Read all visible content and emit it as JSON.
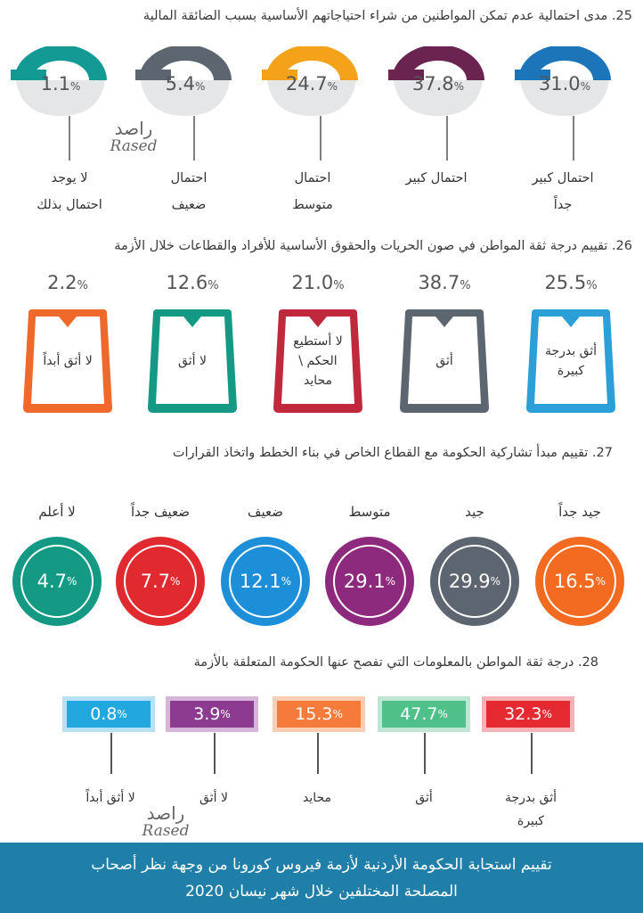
{
  "q25": {
    "title": "25. مدى احتمالية عدم تمكن المواطنين من شراء احتياجاتهم الأساسية بسبب الضائقة المالية",
    "items": [
      {
        "value": "31.0",
        "unit": "%",
        "label_line1": "احتمال كبير",
        "label_line2": "جداً",
        "color": "#1b75b8"
      },
      {
        "value": "37.8",
        "unit": "%",
        "label_line1": "احتمال كبير",
        "label_line2": "",
        "color": "#6b2450"
      },
      {
        "value": "24.7",
        "unit": "%",
        "label_line1": "احتمال",
        "label_line2": "متوسط",
        "color": "#f5a21b"
      },
      {
        "value": "5.4",
        "unit": "%",
        "label_line1": "احتمال",
        "label_line2": "ضعيف",
        "color": "#5d6670"
      },
      {
        "value": "1.1",
        "unit": "%",
        "label_line1": "لا يوجد",
        "label_line2": "احتمال بذلك",
        "color": "#149a95"
      }
    ]
  },
  "q26": {
    "title": "26. تقييم درجة ثقة المواطن في صون الحريات والحقوق الأساسية للأفراد والقطاعات خلال الأزمة",
    "items": [
      {
        "value": "25.5",
        "unit": "%",
        "label": "أثق بدرجة كبيرة",
        "color": "#2a9fd8"
      },
      {
        "value": "38.7",
        "unit": "%",
        "label": "أثق",
        "color": "#5d6670"
      },
      {
        "value": "21.0",
        "unit": "%",
        "label": "لا أستطيع الحكم \\ محايد",
        "color": "#c0283c"
      },
      {
        "value": "12.6",
        "unit": "%",
        "label": "لا أثق",
        "color": "#149a84"
      },
      {
        "value": "2.2",
        "unit": "%",
        "label": "لا أثق أبداً",
        "color": "#ef6a2a"
      }
    ]
  },
  "q27": {
    "title": "27. تقييم مبدأ تشاركية الحكومة مع القطاع الخاص في بناء الخطط واتخاذ القرارات",
    "items": [
      {
        "value": "16.5",
        "unit": "%",
        "label": "جيد جداً",
        "color": "#f26b21"
      },
      {
        "value": "29.9",
        "unit": "%",
        "label": "جيد",
        "color": "#5d6670"
      },
      {
        "value": "29.1",
        "unit": "%",
        "label": "متوسط",
        "color": "#8e2a7d"
      },
      {
        "value": "12.1",
        "unit": "%",
        "label": "ضعيف",
        "color": "#1d8fd8"
      },
      {
        "value": "7.7",
        "unit": "%",
        "label": "ضعيف جداً",
        "color": "#e02a30"
      },
      {
        "value": "4.7",
        "unit": "%",
        "label": "لا أعلم",
        "color": "#149a84"
      }
    ]
  },
  "q28": {
    "title": "28. درجة ثقة المواطن بالمعلومات التي تفصح عنها الحكومة المتعلقة بالأزمة",
    "items": [
      {
        "value": "32.3",
        "unit": "%",
        "label_line1": "أثق بدرجة",
        "label_line2": "كبيرة",
        "color": "#e52a32",
        "light": "#f3b3b6"
      },
      {
        "value": "47.7",
        "unit": "%",
        "label_line1": "أثق",
        "label_line2": "",
        "color": "#4fc08a",
        "light": "#bfe6d2"
      },
      {
        "value": "15.3",
        "unit": "%",
        "label_line1": "محايد",
        "label_line2": "",
        "color": "#f47b3b",
        "light": "#fbcdb2"
      },
      {
        "value": "3.9",
        "unit": "%",
        "label_line1": "لا أثق",
        "label_line2": "",
        "color": "#8d3b90",
        "light": "#d6b6d8"
      },
      {
        "value": "0.8",
        "unit": "%",
        "label_line1": "لا أثق أبداً",
        "label_line2": "",
        "color": "#22a7df",
        "light": "#b6e1f4"
      }
    ]
  },
  "watermark": {
    "arabic": "راصد",
    "latin": "Rased"
  },
  "footer": {
    "line1": "تقييم استجابة الحكومة الأردنية لأزمة فيروس كورونا من وجهة نظر أصحاب",
    "line2": "المصلحة المختلفين خلال شهر نيسان 2020"
  }
}
